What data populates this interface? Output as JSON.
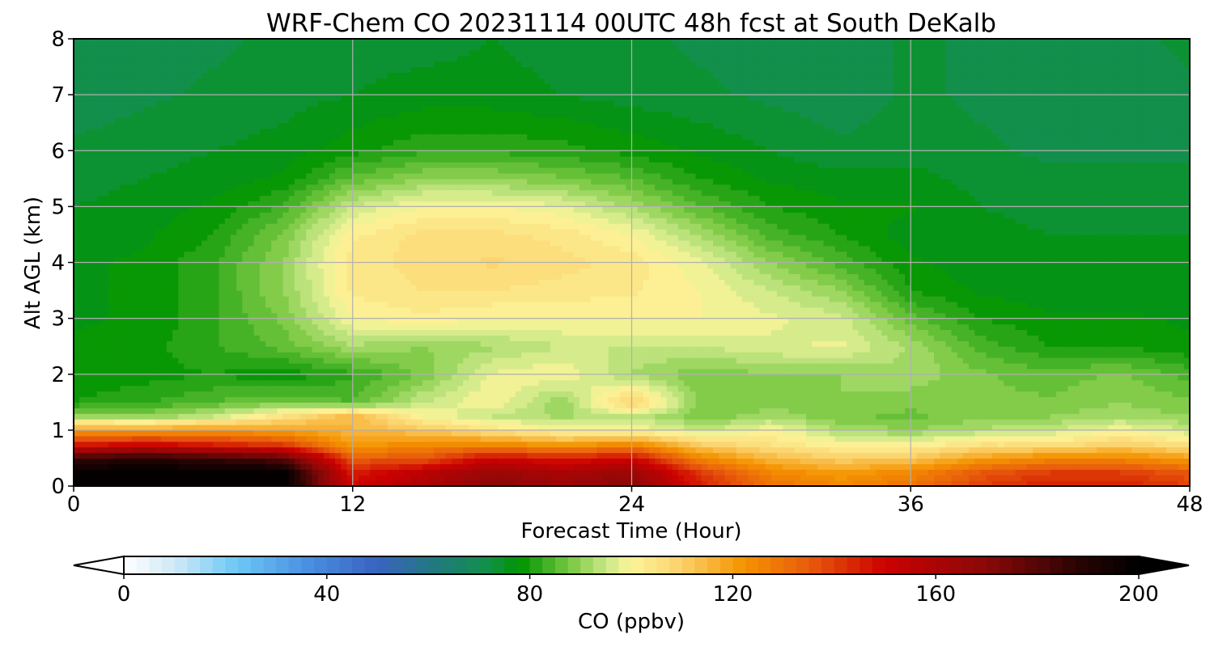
{
  "chart_data": {
    "type": "heatmap",
    "title": "WRF-Chem CO  20231114 00UTC 48h fcst at South DeKalb",
    "xlabel": "Forecast Time (Hour)",
    "ylabel": "Alt AGL (km)",
    "xlim": [
      0,
      48
    ],
    "ylim": [
      0,
      8
    ],
    "xticks": [
      "0",
      "12",
      "24",
      "36",
      "48"
    ],
    "yticks": [
      "0",
      "1",
      "2",
      "3",
      "4",
      "5",
      "6",
      "7",
      "8"
    ],
    "grid": true,
    "x": [
      0,
      3,
      6,
      9,
      12,
      15,
      18,
      21,
      24,
      27,
      30,
      33,
      36,
      39,
      42,
      45,
      48
    ],
    "y": [
      0,
      0.25,
      0.5,
      0.75,
      1,
      1.25,
      1.5,
      2,
      2.5,
      3,
      3.5,
      4,
      4.5,
      5,
      5.5,
      6,
      7,
      8
    ],
    "z": [
      [
        200,
        200,
        200,
        200,
        150,
        160,
        170,
        165,
        170,
        145,
        130,
        125,
        130,
        140,
        145,
        145,
        140
      ],
      [
        200,
        200,
        200,
        200,
        145,
        155,
        165,
        160,
        165,
        140,
        125,
        120,
        125,
        135,
        140,
        140,
        135
      ],
      [
        185,
        190,
        185,
        180,
        135,
        135,
        150,
        145,
        150,
        125,
        115,
        110,
        112,
        120,
        125,
        125,
        120
      ],
      [
        145,
        150,
        145,
        140,
        120,
        125,
        125,
        120,
        125,
        110,
        105,
        100,
        100,
        105,
        105,
        110,
        105
      ],
      [
        120,
        120,
        122,
        120,
        115,
        112,
        105,
        100,
        100,
        95,
        100,
        92,
        90,
        93,
        95,
        100,
        95
      ],
      [
        92,
        90,
        95,
        105,
        115,
        100,
        95,
        92,
        95,
        88,
        92,
        88,
        87,
        89,
        90,
        92,
        90
      ],
      [
        80,
        82,
        85,
        88,
        85,
        95,
        100,
        90,
        110,
        88,
        88,
        90,
        88,
        88,
        88,
        90,
        88
      ],
      [
        78,
        79,
        80,
        78,
        82,
        88,
        98,
        100,
        92,
        88,
        90,
        90,
        92,
        88,
        86,
        88,
        84
      ],
      [
        78,
        79,
        82,
        86,
        92,
        90,
        92,
        95,
        95,
        95,
        97,
        98,
        92,
        84,
        80,
        80,
        78
      ],
      [
        77,
        78,
        82,
        88,
        100,
        102,
        100,
        100,
        100,
        100,
        98,
        96,
        86,
        80,
        78,
        78,
        77
      ],
      [
        77,
        78,
        82,
        90,
        103,
        105,
        105,
        104,
        103,
        100,
        95,
        90,
        80,
        77,
        76,
        76,
        76
      ],
      [
        77,
        78,
        82,
        90,
        104,
        106,
        108,
        106,
        104,
        98,
        90,
        84,
        78,
        76,
        76,
        76,
        76
      ],
      [
        76,
        77,
        80,
        88,
        102,
        106,
        106,
        104,
        100,
        92,
        84,
        80,
        76,
        76,
        75,
        75,
        75
      ],
      [
        75,
        76,
        78,
        83,
        95,
        100,
        100,
        98,
        92,
        85,
        80,
        78,
        78,
        75,
        74,
        74,
        74
      ],
      [
        74,
        75,
        76,
        78,
        86,
        90,
        90,
        88,
        85,
        80,
        77,
        76,
        76,
        74,
        73,
        73,
        73
      ],
      [
        73,
        74,
        75,
        76,
        79,
        82,
        82,
        81,
        79,
        77,
        75,
        73,
        74,
        73,
        72,
        72,
        72
      ],
      [
        71,
        72,
        73,
        74,
        75,
        76,
        76,
        75,
        74,
        73,
        72,
        71,
        73,
        72,
        71,
        71,
        72
      ],
      [
        72,
        71,
        72,
        73,
        74,
        74,
        75,
        74,
        73,
        72,
        71,
        71,
        73,
        72,
        72,
        72,
        73
      ]
    ],
    "colorbar": {
      "label": "CO  (ppbv)",
      "min": 0,
      "max": 200,
      "ticks": [
        "0",
        "40",
        "80",
        "120",
        "160",
        "200"
      ],
      "extend": "both",
      "levels": 80,
      "stops": [
        {
          "v": 0,
          "c": "#ffffff"
        },
        {
          "v": 10,
          "c": "#cfe9f7"
        },
        {
          "v": 22,
          "c": "#6ec8f5"
        },
        {
          "v": 36,
          "c": "#4a90e2"
        },
        {
          "v": 50,
          "c": "#3a62c0"
        },
        {
          "v": 62,
          "c": "#1f7a7a"
        },
        {
          "v": 72,
          "c": "#129148"
        },
        {
          "v": 78,
          "c": "#009400"
        },
        {
          "v": 88,
          "c": "#7ac943"
        },
        {
          "v": 95,
          "c": "#c9e887"
        },
        {
          "v": 100,
          "c": "#fdf59a"
        },
        {
          "v": 110,
          "c": "#fbd06a"
        },
        {
          "v": 122,
          "c": "#f59400"
        },
        {
          "v": 135,
          "c": "#e85c0c"
        },
        {
          "v": 150,
          "c": "#cc0000"
        },
        {
          "v": 170,
          "c": "#8a0808"
        },
        {
          "v": 188,
          "c": "#2a0404"
        },
        {
          "v": 200,
          "c": "#000000"
        }
      ]
    }
  }
}
